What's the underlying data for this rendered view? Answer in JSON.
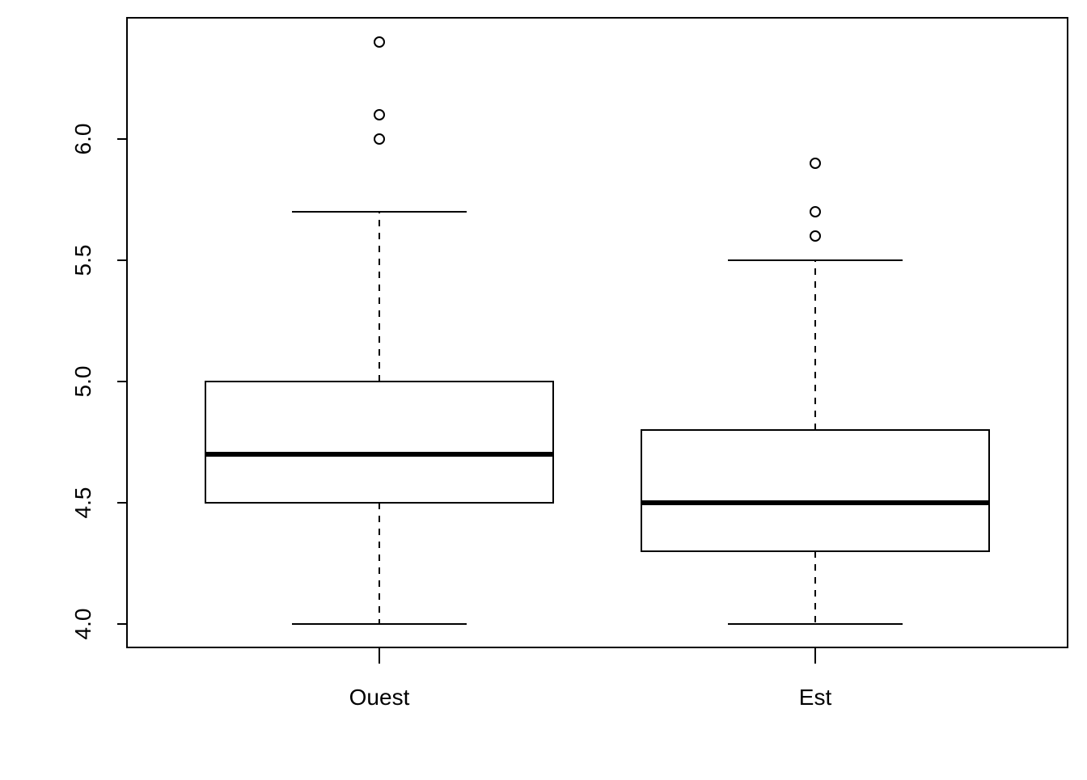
{
  "chart_data": {
    "type": "boxplot",
    "title": "",
    "xlabel": "",
    "ylabel": "",
    "ylim": [
      3.9,
      6.5
    ],
    "yticks": [
      4.0,
      4.5,
      5.0,
      5.5,
      6.0
    ],
    "ytick_labels": [
      "4.0",
      "4.5",
      "5.0",
      "5.5",
      "6.0"
    ],
    "grid": false,
    "categories": [
      "Ouest",
      "Est"
    ],
    "boxes": [
      {
        "category": "Ouest",
        "whisker_low": 4.0,
        "q1": 4.5,
        "median": 4.7,
        "q3": 5.0,
        "whisker_high": 5.7,
        "outliers": [
          6.0,
          6.1,
          6.4
        ]
      },
      {
        "category": "Est",
        "whisker_low": 4.0,
        "q1": 4.3,
        "median": 4.5,
        "q3": 4.8,
        "whisker_high": 5.5,
        "outliers": [
          5.6,
          5.7,
          5.9
        ]
      }
    ]
  }
}
